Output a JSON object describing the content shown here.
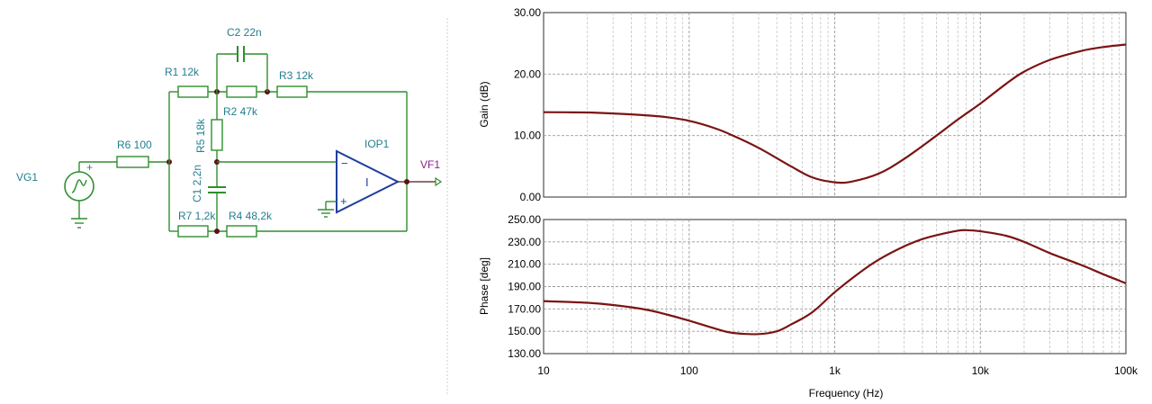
{
  "schematic": {
    "components": {
      "r1": "R1 12k",
      "c2": "C2 22n",
      "r3": "R3 12k",
      "r2": "R2 47k",
      "r5": "R5 18k",
      "r6": "R6 100",
      "c1": "C1 2,2n",
      "r7": "R7 1,2k",
      "r4": "R4 48,2k",
      "vg1": "VG1",
      "iop1": "IOP1",
      "vf1": "VF1"
    },
    "symbols": {
      "minus": "−",
      "plus": "+",
      "opamp_mark": "I",
      "source_plus": "+"
    },
    "colors": {
      "wire": "#2f8f2f",
      "label": "#237f8f",
      "opamp": "#1f3f9f",
      "probe": "#8a1f8a"
    }
  },
  "chart_data": [
    {
      "type": "line",
      "ylabel": "Gain (dB)",
      "xlabel": "",
      "xscale": "log",
      "xlim": [
        10,
        100000
      ],
      "ylim": [
        0,
        30
      ],
      "yticks": [
        "0.00",
        "10.00",
        "20.00",
        "30.00"
      ],
      "grid": true,
      "color": "#7a1414",
      "series": [
        {
          "x": [
            10,
            20,
            30,
            50,
            70,
            100,
            150,
            200,
            300,
            500,
            700,
            1000,
            1300,
            2000,
            3000,
            5000,
            7000,
            10000,
            15000,
            20000,
            30000,
            50000,
            70000,
            100000
          ],
          "y": [
            13.8,
            13.75,
            13.6,
            13.3,
            13.0,
            12.4,
            11.2,
            10.0,
            8.0,
            5.0,
            3.2,
            2.4,
            2.5,
            3.8,
            6.2,
            10.0,
            12.6,
            15.2,
            18.4,
            20.4,
            22.3,
            23.8,
            24.4,
            24.8
          ]
        }
      ]
    },
    {
      "type": "line",
      "ylabel": "Phase [deg]",
      "xlabel": "Frequency (Hz)",
      "xscale": "log",
      "xlim": [
        10,
        100000
      ],
      "ylim": [
        130,
        250
      ],
      "yticks": [
        "130.00",
        "150.00",
        "170.00",
        "190.00",
        "210.00",
        "230.00",
        "250.00"
      ],
      "xticks": [
        "10",
        "100",
        "1k",
        "10k",
        "100k"
      ],
      "grid": true,
      "color": "#7a1414",
      "series": [
        {
          "x": [
            10,
            20,
            30,
            50,
            70,
            100,
            150,
            200,
            300,
            400,
            500,
            700,
            1000,
            1500,
            2000,
            3000,
            4000,
            5000,
            7000,
            8000,
            10000,
            15000,
            20000,
            30000,
            50000,
            70000,
            100000
          ],
          "y": [
            177,
            175.5,
            173.5,
            169.5,
            165,
            159.5,
            152.5,
            148.5,
            147.5,
            150,
            156,
            167,
            185,
            203,
            214,
            226,
            232.5,
            236,
            240,
            240.5,
            239.5,
            235.5,
            230,
            220,
            209,
            201,
            193
          ]
        }
      ]
    }
  ]
}
